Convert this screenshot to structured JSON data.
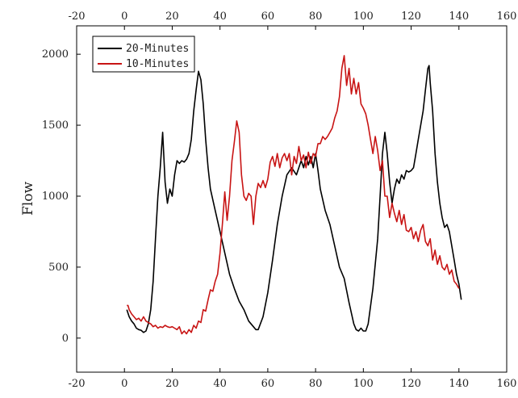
{
  "chart_data": {
    "type": "line",
    "title": "",
    "xlabel": "",
    "ylabel": "Flow",
    "xlim": [
      -20,
      160
    ],
    "ylim": [
      -240,
      2200
    ],
    "x_ticks": [
      -20,
      0,
      20,
      40,
      60,
      80,
      100,
      120,
      140,
      160
    ],
    "y_ticks": [
      0,
      500,
      1000,
      1500,
      2000
    ],
    "x_tick_labels": [
      "-20",
      "0",
      "20",
      "40",
      "60",
      "80",
      "100",
      "120",
      "140",
      "160"
    ],
    "y_tick_labels": [
      "0",
      "500",
      "1000",
      "1500",
      "2000"
    ],
    "top_axis_mirrored": true,
    "grid": false,
    "legend": {
      "position": "top-left"
    },
    "series": [
      {
        "name": "20-Minutes",
        "color": "#000000",
        "points": [
          [
            1,
            200
          ],
          [
            2,
            150
          ],
          [
            3,
            120
          ],
          [
            4,
            100
          ],
          [
            5,
            70
          ],
          [
            6,
            60
          ],
          [
            7,
            55
          ],
          [
            8,
            40
          ],
          [
            9,
            50
          ],
          [
            10,
            100
          ],
          [
            11,
            200
          ],
          [
            12,
            400
          ],
          [
            13,
            700
          ],
          [
            14,
            1000
          ],
          [
            15,
            1200
          ],
          [
            16,
            1450
          ],
          [
            17,
            1100
          ],
          [
            18,
            950
          ],
          [
            19,
            1050
          ],
          [
            20,
            1000
          ],
          [
            21,
            1150
          ],
          [
            22,
            1250
          ],
          [
            23,
            1230
          ],
          [
            24,
            1250
          ],
          [
            25,
            1240
          ],
          [
            26,
            1260
          ],
          [
            27,
            1300
          ],
          [
            28,
            1400
          ],
          [
            29,
            1600
          ],
          [
            30,
            1750
          ],
          [
            31,
            1880
          ],
          [
            32,
            1820
          ],
          [
            33,
            1650
          ],
          [
            34,
            1400
          ],
          [
            35,
            1200
          ],
          [
            36,
            1050
          ],
          [
            38,
            900
          ],
          [
            40,
            750
          ],
          [
            42,
            600
          ],
          [
            44,
            450
          ],
          [
            46,
            350
          ],
          [
            48,
            260
          ],
          [
            50,
            200
          ],
          [
            52,
            120
          ],
          [
            54,
            80
          ],
          [
            55,
            60
          ],
          [
            56,
            60
          ],
          [
            58,
            150
          ],
          [
            60,
            320
          ],
          [
            62,
            550
          ],
          [
            64,
            800
          ],
          [
            66,
            1000
          ],
          [
            68,
            1150
          ],
          [
            70,
            1200
          ],
          [
            72,
            1150
          ],
          [
            74,
            1250
          ],
          [
            75,
            1200
          ],
          [
            76,
            1280
          ],
          [
            77,
            1220
          ],
          [
            78,
            1280
          ],
          [
            79,
            1200
          ],
          [
            80,
            1300
          ],
          [
            81,
            1180
          ],
          [
            82,
            1050
          ],
          [
            84,
            900
          ],
          [
            86,
            800
          ],
          [
            88,
            650
          ],
          [
            90,
            500
          ],
          [
            92,
            420
          ],
          [
            94,
            250
          ],
          [
            96,
            100
          ],
          [
            97,
            60
          ],
          [
            98,
            50
          ],
          [
            99,
            70
          ],
          [
            100,
            50
          ],
          [
            101,
            50
          ],
          [
            102,
            100
          ],
          [
            104,
            350
          ],
          [
            106,
            700
          ],
          [
            107,
            1000
          ],
          [
            108,
            1300
          ],
          [
            109,
            1450
          ],
          [
            110,
            1300
          ],
          [
            111,
            1100
          ],
          [
            112,
            950
          ],
          [
            113,
            1050
          ],
          [
            114,
            1120
          ],
          [
            115,
            1090
          ],
          [
            116,
            1150
          ],
          [
            117,
            1120
          ],
          [
            118,
            1180
          ],
          [
            119,
            1170
          ],
          [
            120,
            1180
          ],
          [
            121,
            1200
          ],
          [
            122,
            1300
          ],
          [
            123,
            1400
          ],
          [
            124,
            1500
          ],
          [
            125,
            1600
          ],
          [
            126,
            1750
          ],
          [
            127,
            1900
          ],
          [
            127.5,
            1920
          ],
          [
            128,
            1800
          ],
          [
            129,
            1600
          ],
          [
            130,
            1300
          ],
          [
            131,
            1100
          ],
          [
            132,
            950
          ],
          [
            133,
            850
          ],
          [
            134,
            780
          ],
          [
            135,
            800
          ],
          [
            136,
            750
          ],
          [
            137,
            650
          ],
          [
            138,
            550
          ],
          [
            139,
            450
          ],
          [
            140,
            380
          ],
          [
            141,
            270
          ]
        ]
      },
      {
        "name": "10-Minutes",
        "color": "#c81414",
        "points": [
          [
            1,
            230
          ],
          [
            1.5,
            230
          ],
          [
            2,
            200
          ],
          [
            3,
            170
          ],
          [
            4,
            150
          ],
          [
            5,
            130
          ],
          [
            6,
            140
          ],
          [
            7,
            120
          ],
          [
            8,
            150
          ],
          [
            9,
            120
          ],
          [
            10,
            110
          ],
          [
            11,
            100
          ],
          [
            12,
            80
          ],
          [
            13,
            90
          ],
          [
            14,
            70
          ],
          [
            15,
            80
          ],
          [
            16,
            75
          ],
          [
            17,
            90
          ],
          [
            18,
            80
          ],
          [
            19,
            75
          ],
          [
            20,
            80
          ],
          [
            21,
            70
          ],
          [
            22,
            60
          ],
          [
            23,
            80
          ],
          [
            24,
            30
          ],
          [
            25,
            50
          ],
          [
            26,
            30
          ],
          [
            27,
            60
          ],
          [
            28,
            40
          ],
          [
            29,
            90
          ],
          [
            30,
            70
          ],
          [
            31,
            120
          ],
          [
            32,
            110
          ],
          [
            33,
            200
          ],
          [
            34,
            190
          ],
          [
            35,
            270
          ],
          [
            36,
            340
          ],
          [
            37,
            330
          ],
          [
            38,
            400
          ],
          [
            39,
            450
          ],
          [
            40,
            600
          ],
          [
            41,
            800
          ],
          [
            42,
            1030
          ],
          [
            43,
            830
          ],
          [
            44,
            1000
          ],
          [
            45,
            1250
          ],
          [
            46,
            1380
          ],
          [
            47,
            1530
          ],
          [
            48,
            1450
          ],
          [
            49,
            1150
          ],
          [
            50,
            1000
          ],
          [
            51,
            970
          ],
          [
            52,
            1020
          ],
          [
            53,
            1000
          ],
          [
            54,
            800
          ],
          [
            55,
            1000
          ],
          [
            56,
            1090
          ],
          [
            57,
            1060
          ],
          [
            58,
            1110
          ],
          [
            59,
            1060
          ],
          [
            60,
            1120
          ],
          [
            61,
            1240
          ],
          [
            62,
            1280
          ],
          [
            63,
            1210
          ],
          [
            64,
            1300
          ],
          [
            65,
            1200
          ],
          [
            66,
            1270
          ],
          [
            67,
            1300
          ],
          [
            68,
            1250
          ],
          [
            69,
            1300
          ],
          [
            70,
            1150
          ],
          [
            71,
            1280
          ],
          [
            72,
            1230
          ],
          [
            73,
            1350
          ],
          [
            74,
            1250
          ],
          [
            75,
            1290
          ],
          [
            76,
            1200
          ],
          [
            77,
            1310
          ],
          [
            78,
            1230
          ],
          [
            79,
            1300
          ],
          [
            80,
            1280
          ],
          [
            81,
            1370
          ],
          [
            82,
            1370
          ],
          [
            83,
            1420
          ],
          [
            84,
            1400
          ],
          [
            85,
            1420
          ],
          [
            86,
            1450
          ],
          [
            87,
            1480
          ],
          [
            88,
            1550
          ],
          [
            89,
            1600
          ],
          [
            90,
            1700
          ],
          [
            91,
            1900
          ],
          [
            92,
            1990
          ],
          [
            93,
            1780
          ],
          [
            94,
            1900
          ],
          [
            95,
            1720
          ],
          [
            96,
            1830
          ],
          [
            97,
            1720
          ],
          [
            98,
            1800
          ],
          [
            99,
            1650
          ],
          [
            100,
            1620
          ],
          [
            101,
            1580
          ],
          [
            102,
            1500
          ],
          [
            103,
            1400
          ],
          [
            104,
            1300
          ],
          [
            105,
            1420
          ],
          [
            106,
            1320
          ],
          [
            107,
            1180
          ],
          [
            108,
            1250
          ],
          [
            109,
            1000
          ],
          [
            110,
            1000
          ],
          [
            111,
            850
          ],
          [
            112,
            950
          ],
          [
            113,
            880
          ],
          [
            114,
            820
          ],
          [
            115,
            900
          ],
          [
            116,
            800
          ],
          [
            117,
            870
          ],
          [
            118,
            760
          ],
          [
            119,
            750
          ],
          [
            120,
            780
          ],
          [
            121,
            700
          ],
          [
            122,
            750
          ],
          [
            123,
            680
          ],
          [
            124,
            760
          ],
          [
            125,
            800
          ],
          [
            126,
            680
          ],
          [
            127,
            650
          ],
          [
            128,
            700
          ],
          [
            129,
            550
          ],
          [
            130,
            620
          ],
          [
            131,
            520
          ],
          [
            132,
            580
          ],
          [
            133,
            500
          ],
          [
            134,
            480
          ],
          [
            135,
            520
          ],
          [
            136,
            450
          ],
          [
            137,
            480
          ],
          [
            138,
            400
          ],
          [
            139,
            380
          ],
          [
            140,
            350
          ]
        ]
      }
    ]
  }
}
